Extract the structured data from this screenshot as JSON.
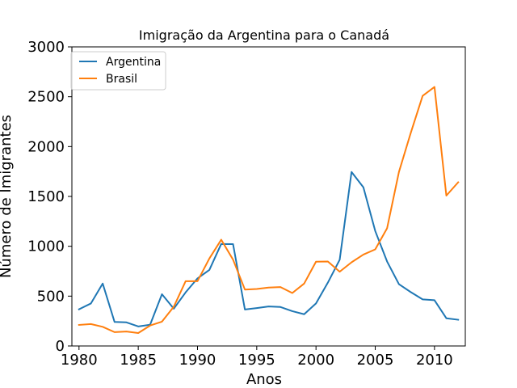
{
  "chart_data": {
    "type": "line",
    "title": "Imigração da Argentina para o Canadá",
    "xlabel": "Anos",
    "ylabel": "Número de Imigrantes",
    "xlim": [
      1979.4,
      2012.6
    ],
    "ylim": [
      0,
      3000
    ],
    "xticks": [
      1980,
      1985,
      1990,
      1995,
      2000,
      2005,
      2010
    ],
    "yticks": [
      0,
      500,
      1000,
      1500,
      2000,
      2500,
      3000
    ],
    "grid": false,
    "legend_position": "top-left",
    "x": [
      1980,
      1981,
      1982,
      1983,
      1984,
      1985,
      1986,
      1987,
      1988,
      1989,
      1990,
      1991,
      1992,
      1993,
      1994,
      1995,
      1996,
      1997,
      1998,
      1999,
      2000,
      2001,
      2002,
      2003,
      2004,
      2005,
      2006,
      2007,
      2008,
      2009,
      2010,
      2011,
      2012
    ],
    "series": [
      {
        "name": "Argentina",
        "color": "#1f77b4",
        "values": [
          368,
          426,
          626,
          241,
          237,
          196,
          213,
          519,
          374,
          538,
          678,
          763,
          1023,
          1022,
          366,
          380,
          396,
          391,
          349,
          318,
          427,
          635,
          865,
          1745,
          1591,
          1153,
          847,
          620,
          540,
          467,
          459,
          278,
          263
        ]
      },
      {
        "name": "Brasil",
        "color": "#ff7f0e",
        "values": [
          211,
          220,
          192,
          139,
          145,
          130,
          205,
          244,
          394,
          650,
          650,
          877,
          1066,
          866,
          566,
          572,
          586,
          591,
          531,
          626,
          845,
          847,
          745,
          839,
          917,
          969,
          1181,
          1746,
          2138,
          2509,
          2598,
          1508,
          1642
        ]
      }
    ]
  }
}
